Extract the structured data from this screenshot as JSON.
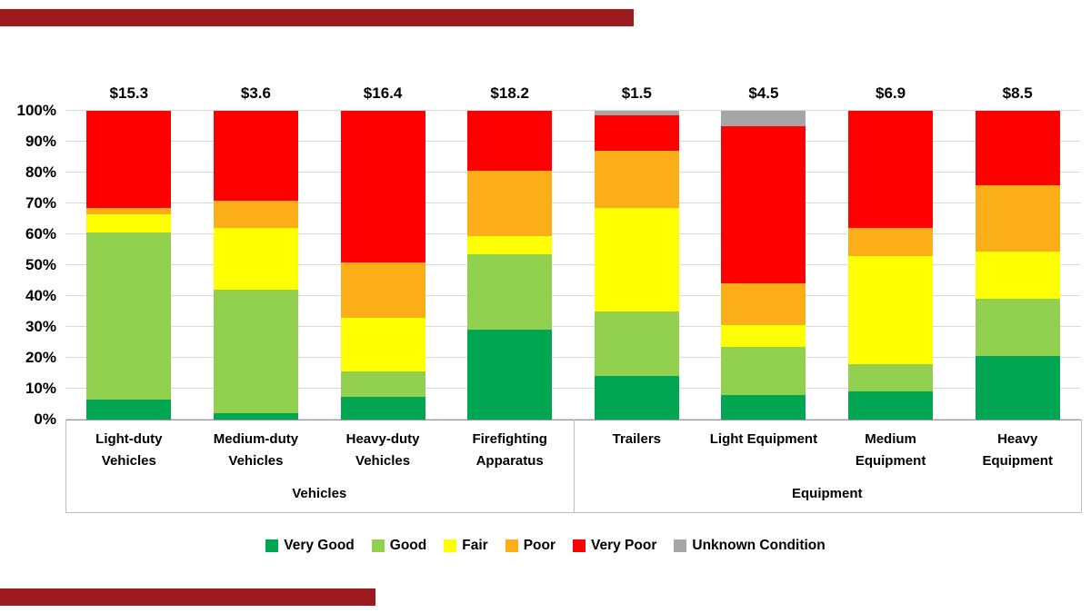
{
  "chart_data": {
    "type": "bar",
    "stacked": true,
    "orientation": "vertical",
    "grid": true,
    "legend_position": "bottom",
    "y_axis": {
      "min": 0,
      "max": 100,
      "tick_step": 10,
      "ticks": [
        "0%",
        "10%",
        "20%",
        "30%",
        "40%",
        "50%",
        "60%",
        "70%",
        "80%",
        "90%",
        "100%"
      ]
    },
    "categories": [
      {
        "name": "Light-duty Vehicles",
        "lines": [
          "Light-duty",
          "Vehicles"
        ],
        "value_label": "$15.3"
      },
      {
        "name": "Medium-duty Vehicles",
        "lines": [
          "Medium-duty",
          "Vehicles"
        ],
        "value_label": "$3.6"
      },
      {
        "name": "Heavy-duty Vehicles",
        "lines": [
          "Heavy-duty",
          "Vehicles"
        ],
        "value_label": "$16.4"
      },
      {
        "name": "Firefighting Apparatus",
        "lines": [
          "Firefighting",
          "Apparatus"
        ],
        "value_label": "$18.2"
      },
      {
        "name": "Trailers",
        "lines": [
          "Trailers"
        ],
        "value_label": "$1.5"
      },
      {
        "name": "Light Equipment",
        "lines": [
          "Light Equipment"
        ],
        "value_label": "$4.5"
      },
      {
        "name": "Medium Equipment",
        "lines": [
          "Medium",
          "Equipment"
        ],
        "value_label": "$6.9"
      },
      {
        "name": "Heavy Equipment",
        "lines": [
          "Heavy",
          "Equipment"
        ],
        "value_label": "$8.5"
      }
    ],
    "category_groups": [
      {
        "label": "Vehicles",
        "span": 4
      },
      {
        "label": "Equipment",
        "span": 4
      }
    ],
    "series": [
      {
        "name": "Very Good",
        "color": "#00A651",
        "values": [
          6.5,
          2,
          7.5,
          29,
          14,
          8,
          9,
          20.5
        ]
      },
      {
        "name": "Good",
        "color": "#92D050",
        "values": [
          54,
          40,
          8,
          24.5,
          21,
          15.5,
          9,
          18.5
        ]
      },
      {
        "name": "Fair",
        "color": "#FFFF00",
        "values": [
          6,
          20,
          17.5,
          6,
          33.5,
          7,
          35,
          15.5
        ]
      },
      {
        "name": "Poor",
        "color": "#FBAE17",
        "values": [
          2,
          9,
          18,
          21,
          18.5,
          13.5,
          9,
          21.5
        ]
      },
      {
        "name": "Very Poor",
        "color": "#FF0000",
        "values": [
          31.5,
          29,
          49,
          19.5,
          11.5,
          51,
          38,
          24
        ]
      },
      {
        "name": "Unknown Condition",
        "color": "#A6A6A6",
        "values": [
          0,
          0,
          0,
          0,
          1.5,
          5,
          0,
          0
        ]
      }
    ],
    "legend": [
      "Very Good",
      "Good",
      "Fair",
      "Poor",
      "Very Poor",
      "Unknown Condition"
    ]
  },
  "decor": {
    "accent_color": "#9B1B1E",
    "gridline_color": "#D9D9D9",
    "axis_color": "#9A9A9A",
    "box_color": "#BFBFBF"
  }
}
